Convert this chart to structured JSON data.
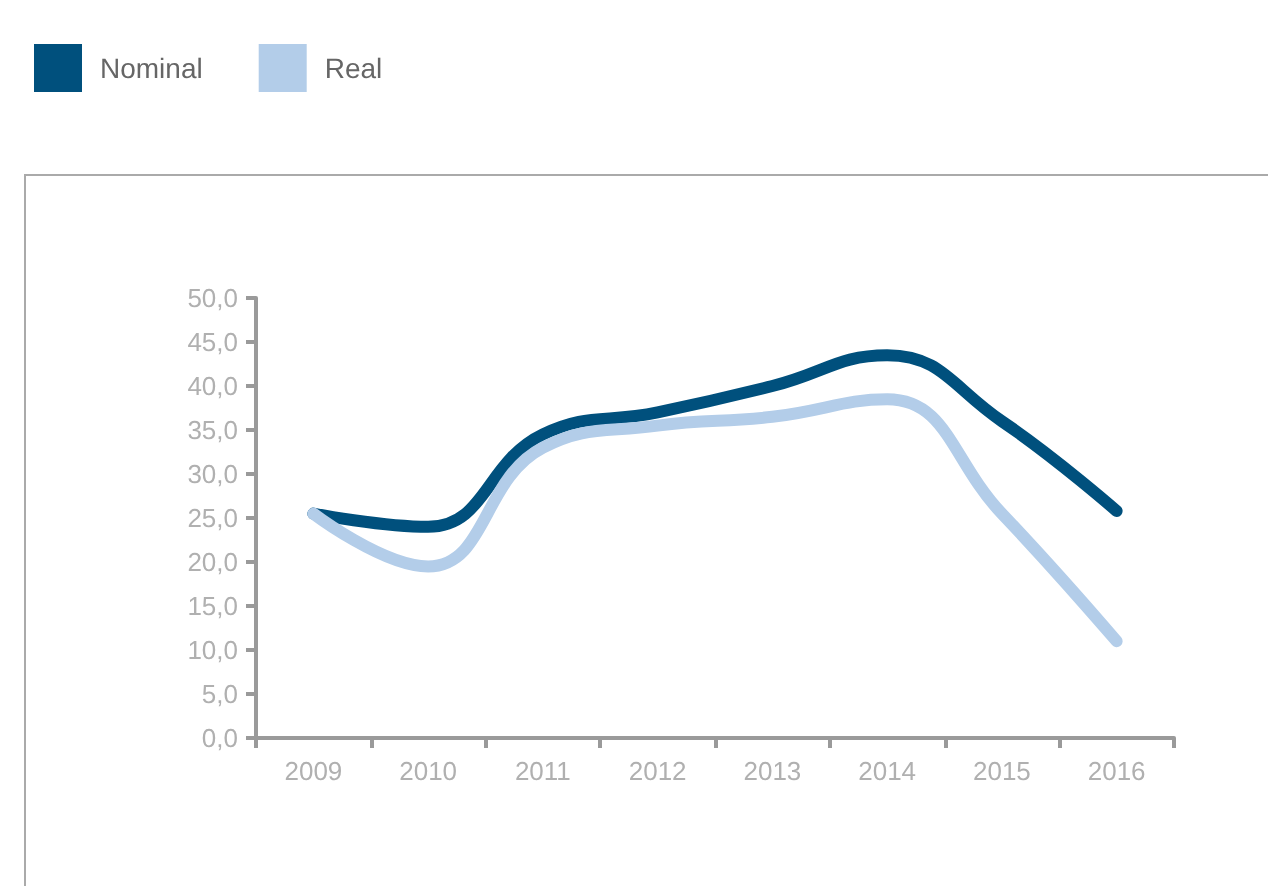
{
  "chart_data": {
    "type": "line",
    "categories": [
      "2009",
      "2010",
      "2011",
      "2012",
      "2013",
      "2014",
      "2015",
      "2016"
    ],
    "series": [
      {
        "name": "Nominal",
        "color": "#00507d",
        "values": [
          25.5,
          24,
          34.5,
          37,
          40,
          43.5,
          36,
          25.8
        ]
      },
      {
        "name": "Real",
        "color": "#b3cde9",
        "values": [
          25.5,
          19.5,
          33,
          35.5,
          36.5,
          38.5,
          25.5,
          11
        ]
      }
    ],
    "ylim": [
      0,
      50
    ],
    "yticks": [
      {
        "value": 0,
        "label": "0,0"
      },
      {
        "value": 5,
        "label": "5,0"
      },
      {
        "value": 10,
        "label": "10,0"
      },
      {
        "value": 15,
        "label": "15,0"
      },
      {
        "value": 20,
        "label": "20,0"
      },
      {
        "value": 25,
        "label": "25,0"
      },
      {
        "value": 30,
        "label": "30,0"
      },
      {
        "value": 35,
        "label": "35,0"
      },
      {
        "value": 40,
        "label": "40,0"
      },
      {
        "value": 45,
        "label": "45,0"
      },
      {
        "value": 50,
        "label": "50,0"
      }
    ],
    "grid": false,
    "legend": "top left",
    "marker": "none",
    "line_style": "solid"
  }
}
